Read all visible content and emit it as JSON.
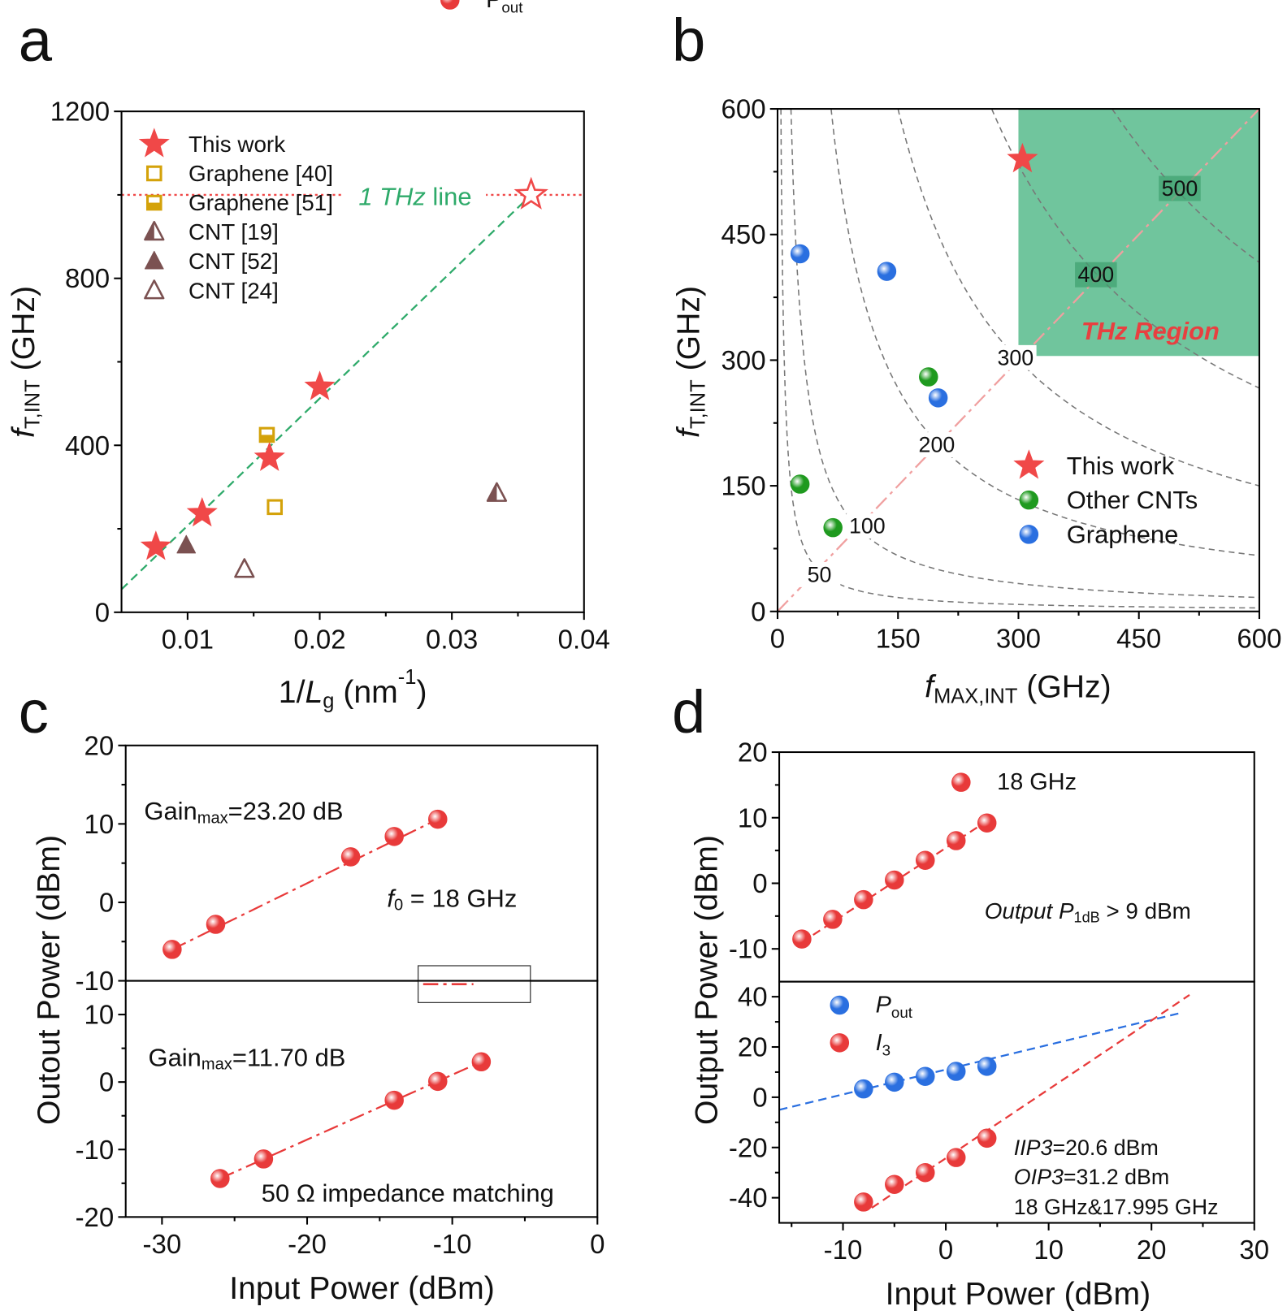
{
  "chart_data": [
    {
      "type": "scatter",
      "panel": "a",
      "xlabel": [
        {
          "t": "1/"
        },
        {
          "t": "L",
          "s": "italic"
        },
        {
          "t": "g",
          "s": "sub"
        },
        {
          "t": " (nm"
        },
        {
          "t": "-1",
          "s": "sup"
        },
        {
          "t": ")"
        }
      ],
      "ylabel": [
        {
          "t": "f",
          "s": "italic"
        },
        {
          "t": "T,INT",
          "s": "sub"
        },
        {
          "t": " (GHz)"
        }
      ],
      "xlim": [
        0.005,
        0.04
      ],
      "xticks": [
        0.01,
        0.02,
        0.03,
        0.04
      ],
      "xminor": [
        0.015,
        0.025,
        0.035
      ],
      "ylim": [
        0,
        1200
      ],
      "yticks": [
        0,
        400,
        800,
        1200
      ],
      "yminor": [
        200,
        600,
        1000
      ],
      "series": [
        {
          "name": "This work",
          "marker": "star",
          "color": "#f04848",
          "x": [
            0.0076,
            0.0111,
            0.0162,
            0.02
          ],
          "y": [
            157,
            237,
            370,
            540
          ]
        },
        {
          "name": "Graphene [40]",
          "marker": "square-open",
          "color": "#d4a20a",
          "x": [
            0.0166
          ],
          "y": [
            252
          ]
        },
        {
          "name": "Graphene [51]",
          "marker": "square-half",
          "color": "#d4a20a",
          "x": [
            0.016
          ],
          "y": [
            425
          ]
        },
        {
          "name": "CNT [19]",
          "marker": "triangle-half",
          "color": "#7b5151",
          "x": [
            0.0334
          ],
          "y": [
            285
          ]
        },
        {
          "name": "CNT [52]",
          "marker": "triangle",
          "color": "#7b5151",
          "x": [
            0.0099
          ],
          "y": [
            160
          ]
        },
        {
          "name": "CNT [24]",
          "marker": "triangle-open",
          "color": "#7b5151",
          "x": [
            0.0143
          ],
          "y": [
            103
          ]
        }
      ],
      "lines": [
        {
          "color": "#2eaa6a",
          "dash": "dashed",
          "x": [
            0.005,
            0.036
          ],
          "y": [
            55,
            1000
          ]
        },
        {
          "color": "#f04848",
          "dash": "dotted",
          "x": [
            0.005,
            0.04
          ],
          "y": [
            1000,
            1000
          ]
        }
      ],
      "target": {
        "marker": "star-open",
        "color": "#f04848",
        "x": 0.036,
        "y": 1000
      },
      "annotations": [
        {
          "color": "#2eaa6a",
          "text": [
            {
              "t": "1 THz",
              "s": "italic"
            },
            {
              "t": " line"
            }
          ]
        }
      ]
    },
    {
      "type": "scatter",
      "panel": "b",
      "xlabel": [
        {
          "t": "f",
          "s": "italic"
        },
        {
          "t": "MAX,INT",
          "s": "sub"
        },
        {
          "t": " (GHz)"
        }
      ],
      "ylabel": [
        {
          "t": "f",
          "s": "italic"
        },
        {
          "t": "T,INT",
          "s": "sub"
        },
        {
          "t": " (GHz)"
        }
      ],
      "xlim": [
        0,
        600
      ],
      "xticks": [
        0,
        150,
        300,
        450,
        600
      ],
      "xminor": [
        75,
        225,
        375,
        525
      ],
      "ylim": [
        0,
        600
      ],
      "yticks": [
        0,
        150,
        300,
        450,
        600
      ],
      "yminor": [
        75,
        225,
        375,
        525
      ],
      "region": {
        "x": [
          300,
          600
        ],
        "y": [
          305,
          600
        ],
        "color": "#4cb784",
        "label": "THz Region",
        "label_color": "#e84040"
      },
      "contours": [
        50,
        100,
        200,
        300,
        400,
        500
      ],
      "contour_color": "#777777",
      "lines": [
        {
          "color": "#f0a0a0",
          "dash": "dashdot",
          "x": [
            0,
            600
          ],
          "y": [
            0,
            600
          ]
        }
      ],
      "series": [
        {
          "name": "This work",
          "marker": "star",
          "color": "#f04848",
          "x": [
            305
          ],
          "y": [
            540
          ]
        },
        {
          "name": "Other CNTs",
          "marker": "ball",
          "color": "#1f9a1f",
          "x": [
            28,
            69,
            188
          ],
          "y": [
            152,
            100,
            280
          ]
        },
        {
          "name": "Graphene",
          "marker": "ball",
          "color": "#2a6fe0",
          "x": [
            28,
            136,
            200
          ],
          "y": [
            427,
            406,
            255
          ]
        }
      ]
    },
    {
      "type": "scatter",
      "panel": "c",
      "ylabel": [
        {
          "t": "Outout Power (dBm)"
        }
      ],
      "xlim": [
        -32.5,
        0
      ],
      "ylim": [
        -10,
        20
      ],
      "yticks": [
        -10,
        0,
        10,
        20
      ],
      "yminor": [
        -5,
        5,
        15
      ],
      "series": [
        {
          "name": [
            {
              "t": "P"
            },
            {
              "t": "out",
              "s": "sub"
            }
          ],
          "marker": "ball",
          "color": "#e83a3a",
          "x": [
            -29.3,
            -26.3,
            -17,
            -14,
            -11
          ],
          "y": [
            -6,
            -2.8,
            5.8,
            8.4,
            10.6
          ]
        }
      ],
      "lines": [
        {
          "color": "#e83a3a",
          "dash": "dashdot",
          "x": [
            -29.3,
            -11
          ],
          "y": [
            -6,
            10.6
          ]
        }
      ],
      "annotations": [
        {
          "text": [
            {
              "t": "Gain"
            },
            {
              "t": "max",
              "s": "sub"
            },
            {
              "t": "=23.20 dB"
            }
          ]
        },
        {
          "text": [
            {
              "t": "f",
              "s": "italic"
            },
            {
              "t": "0",
              "s": "sub"
            },
            {
              "t": " = 18 GHz"
            }
          ]
        }
      ]
    },
    {
      "type": "scatter",
      "xlabel": [
        {
          "t": "Input Power (dBm)"
        }
      ],
      "xlim": [
        -32.5,
        0
      ],
      "xticks": [
        -30,
        -20,
        -10,
        0
      ],
      "xminor": [
        -25,
        -15,
        -5
      ],
      "ylim": [
        -20,
        15
      ],
      "yticks": [
        -20,
        -10,
        0,
        10
      ],
      "yminor": [
        -15,
        -5,
        5
      ],
      "series": [
        {
          "marker": "ball",
          "color": "#e83a3a",
          "x": [
            -26,
            -23,
            -14,
            -11,
            -8
          ],
          "y": [
            -14.3,
            -11.4,
            -2.7,
            0.1,
            3
          ]
        }
      ],
      "lines": [
        {
          "color": "#e83a3a",
          "dash": "dashdot",
          "x": [
            -26,
            -8
          ],
          "y": [
            -14.3,
            3
          ]
        }
      ],
      "annotations": [
        {
          "text": [
            {
              "t": "Gain"
            },
            {
              "t": "max",
              "s": "sub"
            },
            {
              "t": "=11.70 dB"
            }
          ]
        },
        {
          "text": [
            {
              "t": "50 Ω impedance matching"
            }
          ]
        }
      ]
    },
    {
      "type": "scatter",
      "panel": "d",
      "ylabel": [
        {
          "t": "Output Power (dBm)"
        }
      ],
      "xlim": [
        -16.2,
        30
      ],
      "ylim": [
        -15,
        20
      ],
      "yticks": [
        -10,
        0,
        10,
        20
      ],
      "yminor": [
        -5,
        5,
        15
      ],
      "series": [
        {
          "name": "18 GHz",
          "marker": "ball",
          "color": "#e83a3a",
          "x": [
            -14,
            -11,
            -8,
            -5,
            -2,
            1,
            4
          ],
          "y": [
            -8.5,
            -5.5,
            -2.5,
            0.5,
            3.5,
            6.5,
            9.2
          ]
        }
      ],
      "lines": [
        {
          "color": "#e83a3a",
          "dash": "dashed",
          "x": [
            -14,
            4
          ],
          "y": [
            -9,
            9.5
          ]
        }
      ],
      "annotations": [
        {
          "text": [
            {
              "t": "Output P",
              "s": "italic"
            },
            {
              "t": "1dB",
              "s": "sub"
            },
            {
              "t": " > 9 dBm"
            }
          ]
        }
      ]
    },
    {
      "type": "scatter",
      "xlabel": [
        {
          "t": "Input Power (dBm)"
        }
      ],
      "xlim": [
        -16.2,
        30
      ],
      "xticks": [
        -10,
        0,
        10,
        20,
        30
      ],
      "xminor": [
        -15,
        -5,
        5,
        15,
        25
      ],
      "ylim": [
        -50,
        46
      ],
      "yticks": [
        -40,
        -20,
        0,
        20,
        40
      ],
      "yminor": [
        -30,
        -10,
        10,
        30
      ],
      "series": [
        {
          "name": [
            {
              "t": "P",
              "s": "italic"
            },
            {
              "t": "out",
              "s": "sub"
            }
          ],
          "marker": "ball",
          "color": "#2a6fe0",
          "x": [
            -8,
            -5,
            -2,
            1,
            4
          ],
          "y": [
            3.3,
            6,
            8.3,
            10.3,
            12.3
          ]
        },
        {
          "name": [
            {
              "t": "I",
              "s": "italic"
            },
            {
              "t": "3",
              "s": "sub"
            }
          ],
          "marker": "ball",
          "color": "#e83a3a",
          "x": [
            -8,
            -5,
            -2,
            1,
            4
          ],
          "y": [
            -41.7,
            -34.7,
            -30,
            -24,
            -16.3
          ]
        }
      ],
      "lines": [
        {
          "color": "#2a6fe0",
          "dash": "dashed",
          "x": [
            -16.2,
            22.8
          ],
          "y": [
            -5,
            33.5
          ]
        },
        {
          "color": "#e83a3a",
          "dash": "dashed",
          "x": [
            -7.2,
            23.7
          ],
          "y": [
            -44,
            40.7
          ]
        }
      ],
      "annotations": [
        {
          "text": [
            {
              "t": "IIP3",
              "s": "italic"
            },
            {
              "t": "=20.6 dBm"
            }
          ]
        },
        {
          "text": [
            {
              "t": "OIP3",
              "s": "italic"
            },
            {
              "t": "=31.2 dBm"
            }
          ]
        },
        {
          "text": [
            {
              "t": "18 GHz&17.995 GHz"
            }
          ]
        }
      ]
    }
  ]
}
